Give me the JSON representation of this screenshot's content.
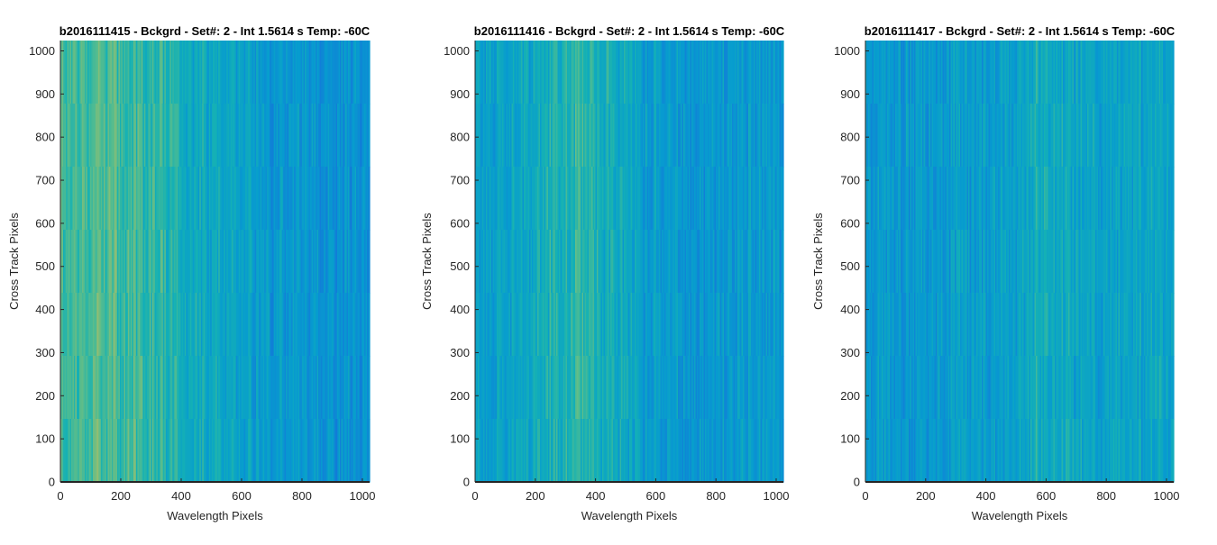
{
  "chart_data": [
    {
      "type": "heatmap",
      "title": "b2016111415 - Bckgrd - Set#: 2 - Int 1.5614 s Temp: -60C",
      "xlabel": "Wavelength Pixels",
      "ylabel": "Cross Track Pixels",
      "xlim": [
        0,
        1024
      ],
      "ylim": [
        0,
        1024
      ],
      "xticks": [
        0,
        200,
        400,
        600,
        800,
        1000
      ],
      "yticks": [
        0,
        100,
        200,
        300,
        400,
        500,
        600,
        700,
        800,
        900,
        1000
      ],
      "colormap": "parula",
      "intensity_profile": {
        "x": [
          0,
          100,
          200,
          300,
          400,
          500,
          600,
          700,
          800,
          900,
          1024
        ],
        "level": [
          0.68,
          0.7,
          0.68,
          0.64,
          0.57,
          0.53,
          0.5,
          0.44,
          0.42,
          0.41,
          0.4
        ]
      }
    },
    {
      "type": "heatmap",
      "title": "b2016111416 - Bckgrd - Set#: 2 - Int 1.5614 s Temp: -60C",
      "xlabel": "Wavelength Pixels",
      "ylabel": "Cross Track Pixels",
      "xlim": [
        0,
        1024
      ],
      "ylim": [
        0,
        1024
      ],
      "xticks": [
        0,
        200,
        400,
        600,
        800,
        1000
      ],
      "yticks": [
        0,
        100,
        200,
        300,
        400,
        500,
        600,
        700,
        800,
        900,
        1000
      ],
      "colormap": "parula",
      "intensity_profile": {
        "x": [
          0,
          100,
          200,
          300,
          350,
          400,
          500,
          600,
          700,
          800,
          900,
          1024
        ],
        "level": [
          0.48,
          0.5,
          0.54,
          0.6,
          0.62,
          0.58,
          0.52,
          0.47,
          0.44,
          0.44,
          0.44,
          0.43
        ]
      }
    },
    {
      "type": "heatmap",
      "title": "b2016111417 - Bckgrd - Set#: 2 - Int 1.5614 s Temp: -60C",
      "xlabel": "Wavelength Pixels",
      "ylabel": "Cross Track Pixels",
      "xlim": [
        0,
        1024
      ],
      "ylim": [
        0,
        1024
      ],
      "xticks": [
        0,
        200,
        400,
        600,
        800,
        1000
      ],
      "yticks": [
        0,
        100,
        200,
        300,
        400,
        500,
        600,
        700,
        800,
        900,
        1000
      ],
      "colormap": "parula",
      "intensity_profile": {
        "x": [
          0,
          100,
          200,
          300,
          400,
          500,
          560,
          620,
          700,
          800,
          900,
          1024
        ],
        "level": [
          0.46,
          0.45,
          0.45,
          0.46,
          0.47,
          0.49,
          0.56,
          0.56,
          0.51,
          0.5,
          0.5,
          0.51
        ]
      }
    }
  ]
}
